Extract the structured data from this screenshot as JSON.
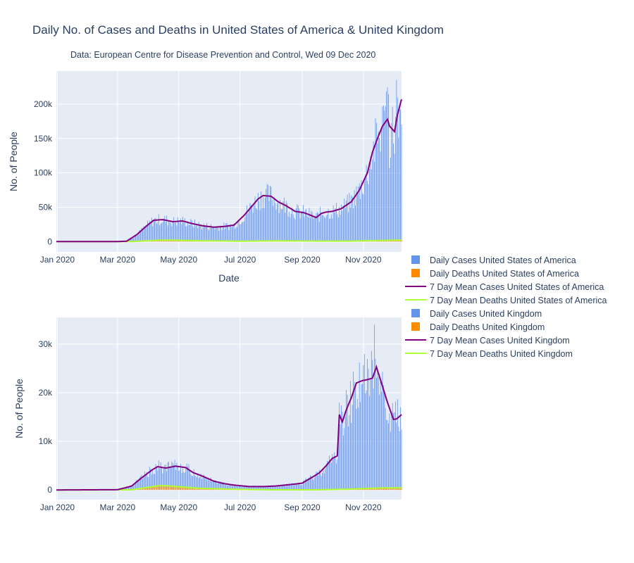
{
  "header": {
    "title": "Daily No. of Cases and Deaths in United States of America & United Kingdom",
    "subtitle": "Data: European Centre for Disease Prevention and Control, Wed 09 Dec 2020"
  },
  "colors": {
    "background": "#ffffff",
    "plot_bg": "#e5ecf6",
    "grid": "#ffffff",
    "daily_cases": "#6495ed",
    "daily_deaths": "#ff8c00",
    "mean_cases": "#800080",
    "mean_deaths": "#adff2f",
    "text": "#2a3f5f"
  },
  "chart_data": [
    {
      "type": "bar",
      "country": "United States of America",
      "xlabel": "Date",
      "ylabel": "No. of People",
      "x_range": [
        "2019-12-31",
        "2020-12-09"
      ],
      "ylim": [
        -15000,
        248000
      ],
      "x_ticks": [
        {
          "date": "2020-01-01",
          "label": "Jan 2020"
        },
        {
          "date": "2020-03-01",
          "label": "Mar 2020"
        },
        {
          "date": "2020-05-01",
          "label": "May 2020"
        },
        {
          "date": "2020-07-01",
          "label": "Jul 2020"
        },
        {
          "date": "2020-09-01",
          "label": "Sep 2020"
        },
        {
          "date": "2020-11-01",
          "label": "Nov 2020"
        }
      ],
      "y_ticks": [
        {
          "value": 0,
          "label": "0"
        },
        {
          "value": 50000,
          "label": "50k"
        },
        {
          "value": 100000,
          "label": "100k"
        },
        {
          "value": 150000,
          "label": "150k"
        },
        {
          "value": 200000,
          "label": "200k"
        }
      ],
      "mean_cases_key": [
        [
          "2019-12-31",
          0
        ],
        [
          "2020-02-28",
          0
        ],
        [
          "2020-03-10",
          600
        ],
        [
          "2020-03-20",
          10000
        ],
        [
          "2020-03-30",
          23000
        ],
        [
          "2020-04-06",
          31000
        ],
        [
          "2020-04-15",
          32000
        ],
        [
          "2020-04-25",
          29000
        ],
        [
          "2020-05-05",
          30000
        ],
        [
          "2020-05-15",
          26000
        ],
        [
          "2020-05-25",
          23000
        ],
        [
          "2020-06-05",
          21000
        ],
        [
          "2020-06-15",
          22000
        ],
        [
          "2020-06-25",
          24000
        ],
        [
          "2020-07-05",
          38000
        ],
        [
          "2020-07-12",
          50000
        ],
        [
          "2020-07-19",
          62000
        ],
        [
          "2020-07-24",
          67000
        ],
        [
          "2020-08-01",
          66000
        ],
        [
          "2020-08-08",
          58000
        ],
        [
          "2020-08-15",
          53000
        ],
        [
          "2020-08-25",
          44000
        ],
        [
          "2020-09-03",
          42000
        ],
        [
          "2020-09-10",
          38000
        ],
        [
          "2020-09-15",
          35000
        ],
        [
          "2020-09-20",
          41000
        ],
        [
          "2020-09-25",
          43000
        ],
        [
          "2020-10-01",
          44000
        ],
        [
          "2020-10-10",
          48000
        ],
        [
          "2020-10-20",
          58000
        ],
        [
          "2020-10-28",
          75000
        ],
        [
          "2020-11-05",
          100000
        ],
        [
          "2020-11-10",
          130000
        ],
        [
          "2020-11-15",
          150000
        ],
        [
          "2020-11-20",
          168000
        ],
        [
          "2020-11-25",
          178000
        ],
        [
          "2020-11-27",
          168000
        ],
        [
          "2020-12-02",
          160000
        ],
        [
          "2020-12-05",
          185000
        ],
        [
          "2020-12-09",
          207000
        ]
      ],
      "mean_deaths_key": [
        [
          "2019-12-31",
          0
        ],
        [
          "2020-03-15",
          50
        ],
        [
          "2020-04-10",
          2000
        ],
        [
          "2020-04-22",
          2200
        ],
        [
          "2020-05-20",
          1300
        ],
        [
          "2020-07-01",
          600
        ],
        [
          "2020-08-05",
          1100
        ],
        [
          "2020-09-20",
          750
        ],
        [
          "2020-10-20",
          800
        ],
        [
          "2020-11-20",
          1700
        ],
        [
          "2020-12-09",
          2300
        ]
      ],
      "daily_cases_peaks": [
        [
          "2020-12-04",
          235000
        ],
        [
          "2020-11-21",
          198000
        ],
        [
          "2020-11-27",
          107000
        ]
      ]
    },
    {
      "type": "bar",
      "country": "United Kingdom",
      "ylabel": "No. of People",
      "x_range": [
        "2019-12-31",
        "2020-12-09"
      ],
      "ylim": [
        -2000,
        35500
      ],
      "x_ticks": [
        {
          "date": "2020-01-01",
          "label": "Jan 2020"
        },
        {
          "date": "2020-03-01",
          "label": "Mar 2020"
        },
        {
          "date": "2020-05-01",
          "label": "May 2020"
        },
        {
          "date": "2020-07-01",
          "label": "Jul 2020"
        },
        {
          "date": "2020-09-01",
          "label": "Sep 2020"
        },
        {
          "date": "2020-11-01",
          "label": "Nov 2020"
        }
      ],
      "y_ticks": [
        {
          "value": 0,
          "label": "0"
        },
        {
          "value": 10000,
          "label": "10k"
        },
        {
          "value": 20000,
          "label": "20k"
        },
        {
          "value": 30000,
          "label": "30k"
        }
      ],
      "mean_cases_key": [
        [
          "2019-12-31",
          0
        ],
        [
          "2020-03-01",
          50
        ],
        [
          "2020-03-15",
          800
        ],
        [
          "2020-03-25",
          2500
        ],
        [
          "2020-04-05",
          4200
        ],
        [
          "2020-04-10",
          4800
        ],
        [
          "2020-04-18",
          4500
        ],
        [
          "2020-04-28",
          4900
        ],
        [
          "2020-05-08",
          4600
        ],
        [
          "2020-05-15",
          3600
        ],
        [
          "2020-05-25",
          2800
        ],
        [
          "2020-06-05",
          1800
        ],
        [
          "2020-06-15",
          1300
        ],
        [
          "2020-06-25",
          1000
        ],
        [
          "2020-07-10",
          700
        ],
        [
          "2020-07-25",
          700
        ],
        [
          "2020-08-05",
          800
        ],
        [
          "2020-08-20",
          1100
        ],
        [
          "2020-09-01",
          1400
        ],
        [
          "2020-09-10",
          2500
        ],
        [
          "2020-09-18",
          3500
        ],
        [
          "2020-09-25",
          5000
        ],
        [
          "2020-10-01",
          6500
        ],
        [
          "2020-10-06",
          7000
        ],
        [
          "2020-10-08",
          15500
        ],
        [
          "2020-10-11",
          14000
        ],
        [
          "2020-10-15",
          16500
        ],
        [
          "2020-10-20",
          19000
        ],
        [
          "2020-10-25",
          22000
        ],
        [
          "2020-10-31",
          22500
        ],
        [
          "2020-11-05",
          22700
        ],
        [
          "2020-11-10",
          23000
        ],
        [
          "2020-11-14",
          25300
        ],
        [
          "2020-11-19",
          22000
        ],
        [
          "2020-11-25",
          18000
        ],
        [
          "2020-12-01",
          14500
        ],
        [
          "2020-12-04",
          14600
        ],
        [
          "2020-12-09",
          15500
        ]
      ],
      "mean_deaths_key": [
        [
          "2019-12-31",
          0
        ],
        [
          "2020-03-15",
          30
        ],
        [
          "2020-04-12",
          900
        ],
        [
          "2020-04-20",
          850
        ],
        [
          "2020-05-20",
          350
        ],
        [
          "2020-07-01",
          120
        ],
        [
          "2020-08-01",
          20
        ],
        [
          "2020-09-15",
          30
        ],
        [
          "2020-10-15",
          150
        ],
        [
          "2020-11-20",
          420
        ],
        [
          "2020-12-09",
          430
        ]
      ],
      "daily_cases_peaks": [
        [
          "2020-11-12",
          34000
        ],
        [
          "2020-11-13",
          27000
        ],
        [
          "2020-11-28",
          12000
        ]
      ]
    }
  ],
  "legend": {
    "items": [
      {
        "label": "Daily Cases United States of America",
        "kind": "square",
        "color": "#6495ed"
      },
      {
        "label": "Daily Deaths United States of America",
        "kind": "square",
        "color": "#ff8c00"
      },
      {
        "label": "7 Day Mean Cases United States of America",
        "kind": "line",
        "color": "#800080"
      },
      {
        "label": "7 Day Mean Deaths United States of America",
        "kind": "line",
        "color": "#adff2f"
      },
      {
        "label": "Daily Cases United Kingdom",
        "kind": "square",
        "color": "#6495ed"
      },
      {
        "label": "Daily Deaths United Kingdom",
        "kind": "square",
        "color": "#ff8c00"
      },
      {
        "label": "7 Day Mean Cases United Kingdom",
        "kind": "line",
        "color": "#800080"
      },
      {
        "label": "7 Day Mean Deaths United Kingdom",
        "kind": "line",
        "color": "#adff2f"
      }
    ]
  }
}
